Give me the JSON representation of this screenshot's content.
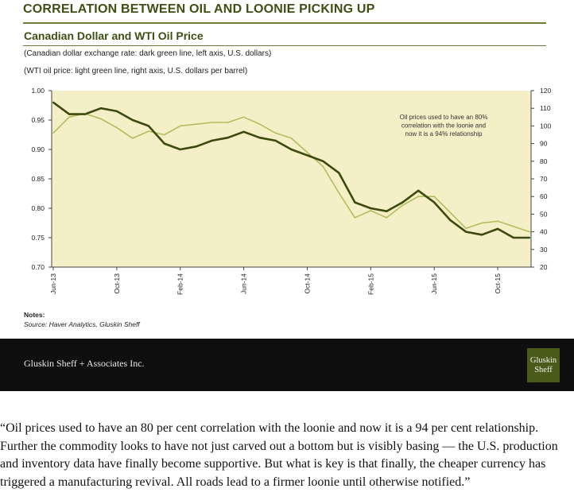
{
  "slide": {
    "headline": "CORRELATION BETWEEN OIL AND LOONIE PICKING UP",
    "subtitle": "Canadian Dollar and WTI Oil Price",
    "desc1": "(Canadian dollar exchange rate: dark green line, left axis, U.S. dollars)",
    "desc2": "(WTI oil price: light green line, right axis, U.S. dollars per barrel)",
    "notes_label": "Notes:",
    "source": "Source: Haver Analytics, Gluskin Sheff"
  },
  "footer": {
    "company": "Gluskin Sheff + Associates Inc.",
    "logo_line1": "Gluskin",
    "logo_line2": "Sheff"
  },
  "quote": "“Oil prices used to have an 80 per cent correlation with the loonie and now it is a 94 per cent relationship. Further the commodity looks to have not just carved out a bottom but is visibly basing — the U.S. production and inventory data have finally become supportive. But what is key is that finally, the cheaper currency has triggered a manufacturing revival. All roads lead to a firmer loonie until otherwise notified.”",
  "chart_data": {
    "type": "line",
    "title": "Canadian Dollar and WTI Oil Price",
    "y_left": {
      "label": "Canadian dollar exchange rate (U.S. dollars)",
      "range": [
        0.7,
        1.0
      ],
      "ticks": [
        "0.70",
        "0.75",
        "0.80",
        "0.85",
        "0.90",
        "0.95",
        "1.00"
      ]
    },
    "y_right": {
      "label": "WTI oil price (U.S. dollars per barrel)",
      "range": [
        20,
        120
      ],
      "ticks": [
        "20",
        "30",
        "40",
        "50",
        "60",
        "70",
        "80",
        "90",
        "100",
        "110",
        "120"
      ]
    },
    "x_ticks": [
      "Jun-13",
      "Oct-13",
      "Feb-14",
      "Jun-14",
      "Oct-14",
      "Feb-15",
      "Jun-15",
      "Oct-15"
    ],
    "grid": false,
    "annotation": [
      "Oil prices used to have an 80%",
      "correlation with the loonie and",
      "now it is a 94% relationship"
    ],
    "colors": {
      "background": "#f4efc6",
      "cad": "#3b4a0e",
      "oil": "#b3bd5f",
      "axis": "#444444"
    },
    "series": [
      {
        "name": "Canadian dollar",
        "axis": "left",
        "x": [
          "2013-06",
          "2013-07",
          "2013-08",
          "2013-09",
          "2013-10",
          "2013-11",
          "2013-12",
          "2014-01",
          "2014-02",
          "2014-03",
          "2014-04",
          "2014-05",
          "2014-06",
          "2014-07",
          "2014-08",
          "2014-09",
          "2014-10",
          "2014-11",
          "2014-12",
          "2015-01",
          "2015-02",
          "2015-03",
          "2015-04",
          "2015-05",
          "2015-06",
          "2015-07",
          "2015-08",
          "2015-09",
          "2015-10",
          "2015-11",
          "2015-12"
        ],
        "values": [
          0.98,
          0.96,
          0.96,
          0.97,
          0.965,
          0.95,
          0.94,
          0.91,
          0.9,
          0.905,
          0.915,
          0.92,
          0.93,
          0.92,
          0.915,
          0.9,
          0.89,
          0.88,
          0.86,
          0.81,
          0.8,
          0.795,
          0.81,
          0.83,
          0.81,
          0.78,
          0.76,
          0.755,
          0.765,
          0.75,
          0.75
        ]
      },
      {
        "name": "WTI oil price",
        "axis": "right",
        "x": [
          "2013-06",
          "2013-07",
          "2013-08",
          "2013-09",
          "2013-10",
          "2013-11",
          "2013-12",
          "2014-01",
          "2014-02",
          "2014-03",
          "2014-04",
          "2014-05",
          "2014-06",
          "2014-07",
          "2014-08",
          "2014-09",
          "2014-10",
          "2014-11",
          "2014-12",
          "2015-01",
          "2015-02",
          "2015-03",
          "2015-04",
          "2015-05",
          "2015-06",
          "2015-07",
          "2015-08",
          "2015-09",
          "2015-10",
          "2015-11",
          "2015-12"
        ],
        "values": [
          96,
          105,
          107,
          104,
          99,
          93,
          97,
          95,
          100,
          101,
          102,
          102,
          105,
          101,
          96,
          93,
          85,
          77,
          62,
          48,
          52,
          48,
          55,
          60,
          60,
          51,
          42,
          45,
          46,
          43,
          40
        ]
      }
    ]
  }
}
